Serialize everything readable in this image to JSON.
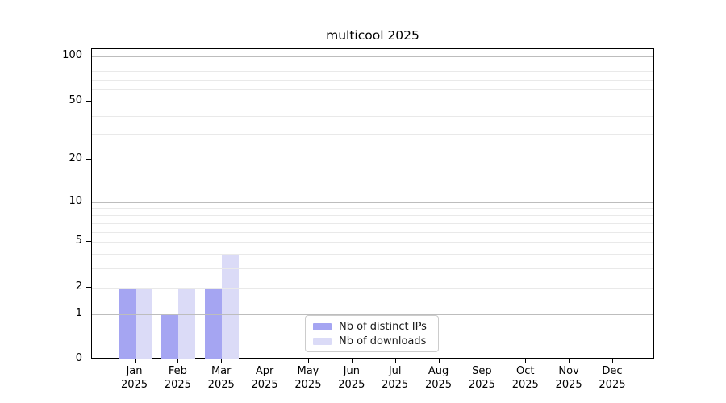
{
  "chart_data": {
    "type": "bar",
    "title": "multicool 2025",
    "categories": [
      "Jan",
      "Feb",
      "Mar",
      "Apr",
      "May",
      "Jun",
      "Jul",
      "Aug",
      "Sep",
      "Oct",
      "Nov",
      "Dec"
    ],
    "category_sublabel": "2025",
    "series": [
      {
        "name": "Nb of distinct IPs",
        "color": "#a5a5f2",
        "values": [
          2,
          1,
          2,
          0,
          0,
          0,
          0,
          0,
          0,
          0,
          0,
          0
        ]
      },
      {
        "name": "Nb of downloads",
        "color": "#dbdbf7",
        "values": [
          2,
          2,
          4,
          0,
          0,
          0,
          0,
          0,
          0,
          0,
          0,
          0
        ]
      }
    ],
    "xlabel": "",
    "ylabel": "",
    "y_scale": "log1p",
    "y_ticks": [
      0,
      1,
      2,
      5,
      10,
      20,
      50,
      100
    ],
    "ylim": [
      0,
      112
    ],
    "grid": {
      "major_values": [
        1,
        10,
        100
      ],
      "minor_values": [
        2,
        3,
        4,
        5,
        6,
        7,
        8,
        9,
        20,
        30,
        40,
        50,
        60,
        70,
        80,
        90
      ],
      "major_color": "#bdbdbd",
      "minor_color": "#e9e9e9"
    },
    "legend_position": "lower center",
    "axis_color": "#000000",
    "background_color": "#ffffff"
  }
}
